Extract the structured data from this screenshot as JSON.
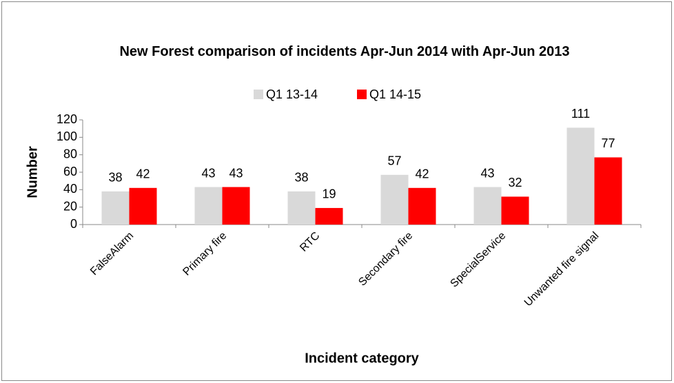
{
  "chart_data": {
    "type": "bar",
    "title": "New Forest comparison of incidents Apr-Jun 2014 with Apr-Jun 2013",
    "x_label": "Incident category",
    "y_label": "Number",
    "categories": [
      "FalseAlarm",
      "Primary fire",
      "RTC",
      "Secondary fire",
      "SpecialService",
      "Unwanted fire signal"
    ],
    "series": [
      {
        "name": "Q1 13-14",
        "color": "#d9d9d9",
        "values": [
          38,
          43,
          38,
          57,
          43,
          111
        ]
      },
      {
        "name": "Q1 14-15",
        "color": "#ff0000",
        "values": [
          42,
          43,
          19,
          42,
          32,
          77
        ]
      }
    ],
    "ylim": [
      0,
      120
    ],
    "yticks": [
      0,
      20,
      40,
      60,
      80,
      100,
      120
    ],
    "grid": false,
    "legend": "top"
  }
}
